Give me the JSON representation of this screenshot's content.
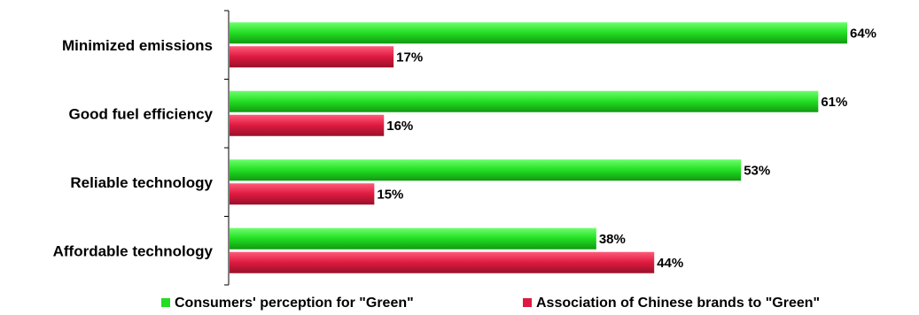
{
  "chart_data": {
    "type": "bar",
    "orientation": "horizontal",
    "categories": [
      "Minimized emissions",
      "Good fuel efficiency",
      "Reliable technology",
      "Affordable technology"
    ],
    "series": [
      {
        "name": "Consumers' perception for \"Green\"",
        "color": "#22dd22",
        "values": [
          64,
          61,
          53,
          38
        ]
      },
      {
        "name": "Association of Chinese brands to \"Green\"",
        "color": "#dd1a40",
        "values": [
          17,
          16,
          15,
          44
        ]
      }
    ],
    "value_suffix": "%",
    "xlim": [
      0,
      64
    ],
    "grid": false,
    "legend_position": "bottom"
  }
}
